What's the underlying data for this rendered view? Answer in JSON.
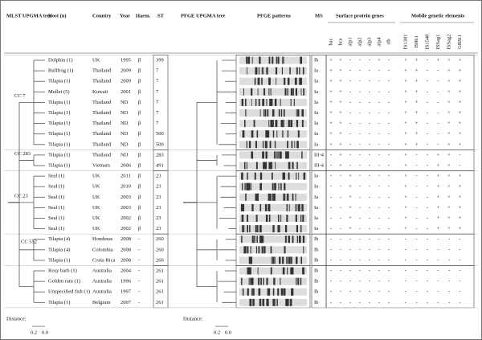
{
  "header": {
    "mlst_tree": "MLST UPGMA tree",
    "host": "Host (n)",
    "country": "Country",
    "year": "Year",
    "haem": "Haem.",
    "st": "ST",
    "pfge_tree": "PFGE UPGMA tree",
    "pfge_patterns": "PFGE patterns",
    "ms": "MS",
    "surface": "Surface protein genes",
    "mobile": "Mobile genetic elements"
  },
  "gene_columns": [
    "bac",
    "bca",
    "alp1",
    "alp2",
    "alp3",
    "alp4",
    "rib",
    "IS1381",
    "IS861",
    "IS1548",
    "ISSag1",
    "ISSag2",
    "GBSi1"
  ],
  "clusters": [
    {
      "label": "CC 7"
    },
    {
      "label": "CC 283"
    },
    {
      "label": "CC 23"
    },
    {
      "label": "CC 552"
    }
  ],
  "rows": [
    {
      "host": "Dolphin (1)",
      "country": "UK",
      "year": "1995",
      "haem": "β",
      "st": "399",
      "ms": "Ib",
      "genes": [
        "+",
        "+",
        "-",
        "-",
        "-",
        "+",
        "-",
        "+",
        "+",
        "-",
        "+",
        "+",
        "+"
      ]
    },
    {
      "host": "Bullfrog (1)",
      "country": "Thailand",
      "year": "2009",
      "haem": "β",
      "st": "7",
      "ms": "Ia",
      "genes": [
        "+",
        "+",
        "-",
        "-",
        "-",
        "-",
        "-",
        "+",
        "+",
        "-",
        "-",
        "+",
        "+"
      ]
    },
    {
      "host": "Tilapia (1)",
      "country": "Thailand",
      "year": "2009",
      "haem": "β",
      "st": "7",
      "ms": "Ia",
      "genes": [
        "+",
        "+",
        "-",
        "-",
        "-",
        "-",
        "-",
        "+",
        "+",
        "-",
        "-",
        "+",
        "+"
      ]
    },
    {
      "host": "Mullet (5)",
      "country": "Kuwait",
      "year": "2001",
      "haem": "β",
      "st": "7",
      "ms": "Ia",
      "genes": [
        "+",
        "+",
        "-",
        "-",
        "-",
        "-",
        "-",
        "+",
        "+",
        "-",
        "-",
        "+",
        "+"
      ]
    },
    {
      "host": "Tilapia (1)",
      "country": "Thailand",
      "year": "ND",
      "haem": "β",
      "st": "7",
      "ms": "Ia",
      "genes": [
        "+",
        "+",
        "-",
        "-",
        "-",
        "-",
        "-",
        "+",
        "+",
        "-",
        "-",
        "+",
        "+"
      ]
    },
    {
      "host": "Tilapia (1)",
      "country": "Thailand",
      "year": "ND",
      "haem": "β",
      "st": "7",
      "ms": "Ia",
      "genes": [
        "+",
        "+",
        "-",
        "-",
        "-",
        "-",
        "-",
        "+",
        "+",
        "-",
        "-",
        "+",
        "+"
      ]
    },
    {
      "host": "Tilapia (1)",
      "country": "Thailand",
      "year": "ND",
      "haem": "β",
      "st": "7",
      "ms": "Ia",
      "genes": [
        "+",
        "+",
        "-",
        "-",
        "-",
        "-",
        "-",
        "+",
        "+",
        "-",
        "-",
        "+",
        "+"
      ]
    },
    {
      "host": "Tilapia (1)",
      "country": "Thailand",
      "year": "ND",
      "haem": "β",
      "st": "500",
      "ms": "Ia",
      "genes": [
        "+",
        "+",
        "-",
        "-",
        "-",
        "-",
        "-",
        "+",
        "+",
        "-",
        "-",
        "+",
        "+"
      ]
    },
    {
      "host": "Tilapia (1)",
      "country": "Thailand",
      "year": "ND",
      "haem": "β",
      "st": "500",
      "ms": "Ia",
      "genes": [
        "+",
        "+",
        "-",
        "-",
        "-",
        "-",
        "-",
        "+",
        "+",
        "-",
        "-",
        "+",
        "+"
      ]
    },
    {
      "host": "Tilapia (1)",
      "country": "Thailand",
      "year": "ND",
      "haem": "β",
      "st": "283",
      "ms": "III-4",
      "genes": [
        "-",
        "+",
        "-",
        "-",
        "-",
        "-",
        "-",
        "+",
        "-",
        "-",
        "+",
        "+",
        "-"
      ]
    },
    {
      "host": "Tilapia (1)",
      "country": "Vietnam",
      "year": "2006",
      "haem": "β",
      "st": "491",
      "ms": "III-4",
      "genes": [
        "-",
        "+",
        "-",
        "-",
        "-",
        "-",
        "-",
        "+",
        "-",
        "-",
        "+",
        "+",
        "-"
      ]
    },
    {
      "host": "Seal (1)",
      "country": "UK",
      "year": "2011",
      "haem": "β",
      "st": "23",
      "ms": "Ia",
      "genes": [
        "-",
        "-",
        "+",
        "-",
        "-",
        "-",
        "-",
        "+",
        "-",
        "-",
        "+",
        "+",
        "+"
      ]
    },
    {
      "host": "Seal (1)",
      "country": "UK",
      "year": "2010",
      "haem": "β",
      "st": "23",
      "ms": "Ia",
      "genes": [
        "-",
        "-",
        "+",
        "-",
        "-",
        "-",
        "-",
        "+",
        "-",
        "-",
        "+",
        "+",
        "+"
      ]
    },
    {
      "host": "Seal (1)",
      "country": "UK",
      "year": "2003",
      "haem": "β",
      "st": "23",
      "ms": "Ia",
      "genes": [
        "-",
        "-",
        "+",
        "-",
        "-",
        "-",
        "-",
        "+",
        "-",
        "-",
        "+",
        "+",
        "+"
      ]
    },
    {
      "host": "Seal (1)",
      "country": "UK",
      "year": "2003",
      "haem": "β",
      "st": "23",
      "ms": "Ia",
      "genes": [
        "-",
        "-",
        "+",
        "-",
        "-",
        "-",
        "-",
        "+",
        "-",
        "-",
        "+",
        "+",
        "+"
      ]
    },
    {
      "host": "Seal (1)",
      "country": "UK",
      "year": "2002",
      "haem": "β",
      "st": "23",
      "ms": "Ia",
      "genes": [
        "-",
        "-",
        "+",
        "-",
        "-",
        "-",
        "-",
        "+",
        "-",
        "-",
        "+",
        "+",
        "+"
      ]
    },
    {
      "host": "Seal (1)",
      "country": "UK",
      "year": "2002",
      "haem": "β",
      "st": "23",
      "ms": "Ia",
      "genes": [
        "-",
        "-",
        "+",
        "-",
        "-",
        "-",
        "-",
        "+",
        "-",
        "-",
        "+",
        "+",
        "+"
      ]
    },
    {
      "host": "Tilapia (4)",
      "country": "Honduras",
      "year": "2008",
      "haem": "-",
      "st": "260",
      "ms": "Ib",
      "genes": [
        "-",
        "-",
        "-",
        "-",
        "-",
        "-",
        "-",
        "-",
        "-",
        "-",
        "-",
        "-",
        "-"
      ]
    },
    {
      "host": "Tilapia (4)",
      "country": "Colombia",
      "year": "2008",
      "haem": "-",
      "st": "260",
      "ms": "Ib",
      "genes": [
        "-",
        "-",
        "-",
        "-",
        "-",
        "-",
        "-",
        "-",
        "-",
        "-",
        "-",
        "-",
        "-"
      ]
    },
    {
      "host": "Tilapia (1)",
      "country": "Costa Rica",
      "year": "2008",
      "haem": "-",
      "st": "260",
      "ms": "Ib",
      "genes": [
        "-",
        "-",
        "-",
        "-",
        "-",
        "-",
        "-",
        "-",
        "-",
        "-",
        "-",
        "-",
        "-"
      ]
    },
    {
      "host": "Rosy barb (1)",
      "country": "Australia",
      "year": "2004",
      "haem": "-",
      "st": "261",
      "ms": "Ib",
      "genes": [
        "-",
        "-",
        "-",
        "-",
        "-",
        "-",
        "-",
        "-",
        "-",
        "-",
        "-",
        "-",
        "-"
      ]
    },
    {
      "host": "Golden ram (1)",
      "country": "Australia",
      "year": "1996",
      "haem": "-",
      "st": "261",
      "ms": "Ib",
      "genes": [
        "-",
        "-",
        "-",
        "-",
        "-",
        "-",
        "-",
        "-",
        "-",
        "-",
        "-",
        "-",
        "-"
      ]
    },
    {
      "host": "Unspecified fish (1)",
      "country": "Australia",
      "year": "1997",
      "haem": "-",
      "st": "261",
      "ms": "Ib",
      "genes": [
        "-",
        "-",
        "-",
        "-",
        "-",
        "-",
        "-",
        "-",
        "-",
        "-",
        "-",
        "-",
        "-"
      ]
    },
    {
      "host": "Tilapia (1)",
      "country": "Belgium",
      "year": "2007",
      "haem": "-",
      "st": "261",
      "ms": "Ib",
      "genes": [
        "-",
        "-",
        "-",
        "-",
        "-",
        "-",
        "-",
        "-",
        "-",
        "-",
        "-",
        "-",
        "-"
      ]
    }
  ],
  "distance": {
    "label": "Distance:",
    "left": "0.2",
    "right": "0.0"
  },
  "pfge_distance": {
    "label": "Distance:",
    "left": "0.2",
    "right": "0.0"
  }
}
